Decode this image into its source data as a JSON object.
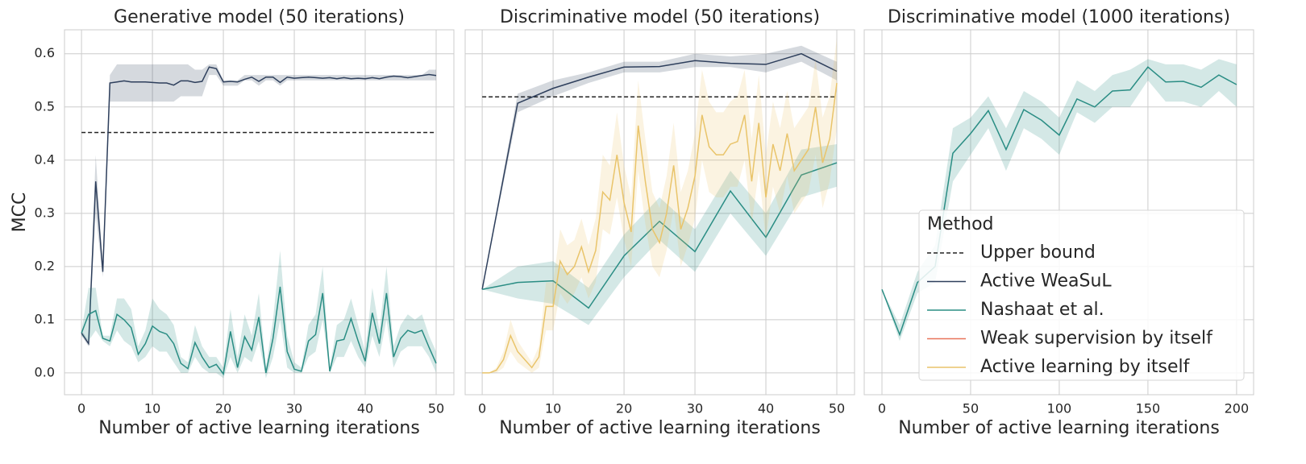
{
  "chart_data": [
    {
      "type": "line",
      "title": "Generative model (50 iterations)",
      "xlabel": "Number of active learning iterations",
      "ylabel": "MCC",
      "xlim": [
        -2.4,
        52.5
      ],
      "ylim": [
        -0.041,
        0.645
      ],
      "xticks": [
        0,
        10,
        20,
        30,
        40,
        50
      ],
      "yticks": [
        {
          "value": 0,
          "label": "0.0"
        },
        0.1,
        0.2,
        0.3,
        0.4,
        0.5,
        0.6
      ],
      "grid": true,
      "series": [
        {
          "name": "Upper bound",
          "color": "#222222",
          "linestyle": "dashed",
          "x": [
            0,
            50
          ],
          "values": [
            0.452,
            0.452
          ]
        },
        {
          "name": "Active WeaSuL",
          "color": "#2e3f5c",
          "linestyle": "solid",
          "x": [
            0,
            1,
            2,
            3,
            4,
            5,
            6,
            7,
            8,
            9,
            10,
            11,
            12,
            13,
            14,
            15,
            16,
            17,
            18,
            19,
            20,
            21,
            22,
            23,
            24,
            25,
            26,
            27,
            28,
            29,
            30,
            31,
            32,
            33,
            34,
            35,
            36,
            37,
            38,
            39,
            40,
            41,
            42,
            43,
            44,
            45,
            46,
            47,
            48,
            49,
            50
          ],
          "values": [
            0.075,
            0.055,
            0.36,
            0.19,
            0.545,
            0.547,
            0.549,
            0.547,
            0.547,
            0.547,
            0.546,
            0.545,
            0.545,
            0.541,
            0.549,
            0.549,
            0.546,
            0.548,
            0.575,
            0.572,
            0.547,
            0.548,
            0.547,
            0.552,
            0.556,
            0.548,
            0.556,
            0.556,
            0.546,
            0.556,
            0.554,
            0.555,
            0.556,
            0.555,
            0.554,
            0.555,
            0.553,
            0.555,
            0.553,
            0.554,
            0.553,
            0.555,
            0.553,
            0.556,
            0.558,
            0.557,
            0.555,
            0.557,
            0.559,
            0.561,
            0.559
          ],
          "lower": [
            0.07,
            0.05,
            0.3,
            0.18,
            0.51,
            0.51,
            0.51,
            0.51,
            0.51,
            0.51,
            0.51,
            0.51,
            0.51,
            0.51,
            0.52,
            0.52,
            0.52,
            0.52,
            0.56,
            0.56,
            0.54,
            0.54,
            0.54,
            0.55,
            0.55,
            0.54,
            0.55,
            0.55,
            0.54,
            0.55,
            0.55,
            0.55,
            0.55,
            0.55,
            0.55,
            0.55,
            0.55,
            0.55,
            0.55,
            0.55,
            0.55,
            0.55,
            0.55,
            0.55,
            0.55,
            0.55,
            0.55,
            0.55,
            0.55,
            0.55,
            0.55
          ],
          "upper": [
            0.08,
            0.06,
            0.41,
            0.2,
            0.56,
            0.58,
            0.58,
            0.58,
            0.58,
            0.58,
            0.58,
            0.58,
            0.58,
            0.58,
            0.58,
            0.58,
            0.57,
            0.57,
            0.58,
            0.58,
            0.55,
            0.55,
            0.55,
            0.56,
            0.56,
            0.56,
            0.56,
            0.56,
            0.56,
            0.56,
            0.56,
            0.56,
            0.56,
            0.56,
            0.56,
            0.56,
            0.56,
            0.56,
            0.56,
            0.56,
            0.56,
            0.56,
            0.56,
            0.56,
            0.56,
            0.56,
            0.56,
            0.56,
            0.56,
            0.57,
            0.57
          ]
        },
        {
          "name": "Nashaat et al.",
          "color": "#2a8d84",
          "linestyle": "solid",
          "x": [
            0,
            1,
            2,
            3,
            4,
            5,
            6,
            7,
            8,
            9,
            10,
            11,
            12,
            13,
            14,
            15,
            16,
            17,
            18,
            19,
            20,
            21,
            22,
            23,
            24,
            25,
            26,
            27,
            28,
            29,
            30,
            31,
            32,
            33,
            34,
            35,
            36,
            37,
            38,
            39,
            40,
            41,
            42,
            43,
            44,
            45,
            46,
            47,
            48,
            49,
            50
          ],
          "values": [
            0.075,
            0.11,
            0.117,
            0.065,
            0.06,
            0.11,
            0.1,
            0.085,
            0.035,
            0.055,
            0.088,
            0.078,
            0.073,
            0.055,
            0.018,
            0.008,
            0.057,
            0.03,
            0.01,
            0.016,
            -0.002,
            0.078,
            0.01,
            0.068,
            0.043,
            0.105,
            0.0,
            0.065,
            0.162,
            0.04,
            0.007,
            0.003,
            0.06,
            0.072,
            0.15,
            0.003,
            0.06,
            0.063,
            0.102,
            0.06,
            0.022,
            0.113,
            0.055,
            0.15,
            0.03,
            0.065,
            0.08,
            0.075,
            0.08,
            0.048,
            0.018
          ],
          "lower": [
            0.07,
            0.06,
            0.08,
            0.06,
            0.05,
            0.08,
            0.06,
            0.05,
            0.02,
            0.03,
            0.05,
            0.04,
            0.04,
            0.02,
            0.0,
            0.0,
            0.03,
            0.01,
            0.0,
            0.0,
            -0.01,
            0.03,
            0.0,
            0.03,
            0.02,
            0.06,
            -0.01,
            0.03,
            0.1,
            0.01,
            0.0,
            0.0,
            0.03,
            0.04,
            0.1,
            0.0,
            0.03,
            0.03,
            0.06,
            0.03,
            0.01,
            0.07,
            0.03,
            0.1,
            0.01,
            0.04,
            0.05,
            0.05,
            0.05,
            0.03,
            0.0
          ],
          "upper": [
            0.08,
            0.16,
            0.16,
            0.07,
            0.07,
            0.14,
            0.14,
            0.12,
            0.05,
            0.08,
            0.14,
            0.12,
            0.11,
            0.09,
            0.03,
            0.02,
            0.09,
            0.05,
            0.03,
            0.03,
            0.01,
            0.12,
            0.03,
            0.11,
            0.07,
            0.15,
            0.01,
            0.1,
            0.23,
            0.07,
            0.02,
            0.01,
            0.09,
            0.11,
            0.2,
            0.01,
            0.09,
            0.1,
            0.14,
            0.09,
            0.04,
            0.16,
            0.08,
            0.2,
            0.05,
            0.09,
            0.11,
            0.1,
            0.11,
            0.07,
            0.04
          ]
        }
      ]
    },
    {
      "type": "line",
      "title": "Discriminative model (50 iterations)",
      "xlabel": "Number of active learning iterations",
      "xlim": [
        -2.4,
        52.5
      ],
      "ylim": [
        -0.041,
        0.645
      ],
      "xticks": [
        0,
        10,
        20,
        30,
        40,
        50
      ],
      "sharey": true,
      "grid": true,
      "series": [
        {
          "name": "Upper bound",
          "color": "#222222",
          "linestyle": "dashed",
          "x": [
            0,
            50
          ],
          "values": [
            0.519,
            0.519
          ]
        },
        {
          "name": "Active WeaSuL",
          "color": "#2e3f5c",
          "linestyle": "solid",
          "x": [
            0,
            5,
            10,
            15,
            20,
            25,
            30,
            35,
            40,
            45,
            50
          ],
          "values": [
            0.157,
            0.507,
            0.535,
            0.556,
            0.575,
            0.576,
            0.587,
            0.582,
            0.58,
            0.6,
            0.567
          ],
          "lower": [
            0.157,
            0.49,
            0.52,
            0.545,
            0.565,
            0.565,
            0.575,
            0.575,
            0.565,
            0.585,
            0.55
          ],
          "upper": [
            0.157,
            0.525,
            0.55,
            0.565,
            0.585,
            0.585,
            0.6,
            0.595,
            0.6,
            0.615,
            0.585
          ]
        },
        {
          "name": "Nashaat et al.",
          "color": "#2a8d84",
          "linestyle": "solid",
          "x": [
            0,
            5,
            10,
            15,
            20,
            25,
            30,
            35,
            40,
            45,
            50
          ],
          "values": [
            0.157,
            0.17,
            0.173,
            0.122,
            0.22,
            0.285,
            0.228,
            0.342,
            0.255,
            0.372,
            0.395
          ],
          "lower": [
            0.157,
            0.14,
            0.13,
            0.09,
            0.18,
            0.25,
            0.19,
            0.3,
            0.22,
            0.33,
            0.35
          ],
          "upper": [
            0.157,
            0.2,
            0.21,
            0.16,
            0.26,
            0.33,
            0.27,
            0.38,
            0.3,
            0.42,
            0.43
          ]
        },
        {
          "name": "Active learning by itself",
          "color": "#e9c46a",
          "linestyle": "solid",
          "x": [
            0,
            1,
            2,
            3,
            4,
            5,
            6,
            7,
            8,
            9,
            10,
            11,
            12,
            13,
            14,
            15,
            16,
            17,
            18,
            19,
            20,
            21,
            22,
            23,
            24,
            25,
            26,
            27,
            28,
            29,
            30,
            31,
            32,
            33,
            34,
            35,
            36,
            37,
            38,
            39,
            40,
            41,
            42,
            43,
            44,
            45,
            46,
            47,
            48,
            49,
            50
          ],
          "values": [
            0.0,
            0.0,
            0.005,
            0.025,
            0.07,
            0.04,
            0.025,
            0.01,
            0.03,
            0.125,
            0.125,
            0.21,
            0.185,
            0.2,
            0.237,
            0.19,
            0.23,
            0.34,
            0.325,
            0.41,
            0.32,
            0.265,
            0.465,
            0.36,
            0.27,
            0.245,
            0.3,
            0.39,
            0.27,
            0.31,
            0.37,
            0.485,
            0.425,
            0.41,
            0.41,
            0.43,
            0.435,
            0.485,
            0.36,
            0.47,
            0.33,
            0.43,
            0.38,
            0.45,
            0.38,
            0.4,
            0.42,
            0.5,
            0.395,
            0.44,
            0.545
          ],
          "lower": [
            0,
            0,
            0,
            0.01,
            0.04,
            0.02,
            0.01,
            0,
            0.01,
            0.08,
            0.08,
            0.15,
            0.13,
            0.15,
            0.18,
            0.14,
            0.17,
            0.27,
            0.26,
            0.33,
            0.25,
            0.2,
            0.38,
            0.28,
            0.2,
            0.18,
            0.23,
            0.31,
            0.2,
            0.24,
            0.29,
            0.4,
            0.34,
            0.33,
            0.33,
            0.35,
            0.35,
            0.4,
            0.28,
            0.38,
            0.25,
            0.35,
            0.3,
            0.37,
            0.3,
            0.32,
            0.34,
            0.41,
            0.31,
            0.36,
            0.46
          ],
          "upper": [
            0,
            0,
            0.01,
            0.04,
            0.1,
            0.06,
            0.04,
            0.02,
            0.05,
            0.17,
            0.17,
            0.27,
            0.24,
            0.25,
            0.29,
            0.24,
            0.29,
            0.41,
            0.39,
            0.49,
            0.39,
            0.33,
            0.55,
            0.44,
            0.34,
            0.31,
            0.37,
            0.47,
            0.34,
            0.38,
            0.45,
            0.57,
            0.51,
            0.49,
            0.49,
            0.51,
            0.52,
            0.57,
            0.44,
            0.56,
            0.41,
            0.51,
            0.46,
            0.53,
            0.46,
            0.48,
            0.5,
            0.59,
            0.48,
            0.52,
            0.63
          ]
        }
      ]
    },
    {
      "type": "line",
      "title": "Discriminative model (1000 iterations)",
      "xlabel": "Number of active learning iterations",
      "xlim": [
        -10,
        209.6
      ],
      "ylim": [
        -0.041,
        0.645
      ],
      "xticks": [
        0,
        50,
        100,
        150,
        200
      ],
      "sharey": true,
      "grid": true,
      "series": [
        {
          "name": "Nashaat et al.",
          "color": "#2a8d84",
          "linestyle": "solid",
          "x": [
            0,
            10,
            20,
            30,
            40,
            50,
            60,
            70,
            80,
            90,
            100,
            110,
            120,
            130,
            140,
            150,
            160,
            170,
            180,
            190,
            200
          ],
          "values": [
            0.157,
            0.072,
            0.17,
            0.2,
            0.413,
            0.45,
            0.493,
            0.42,
            0.495,
            0.475,
            0.447,
            0.515,
            0.5,
            0.53,
            0.532,
            0.575,
            0.547,
            0.548,
            0.537,
            0.56,
            0.542
          ],
          "lower": [
            0.157,
            0.06,
            0.15,
            0.17,
            0.36,
            0.41,
            0.46,
            0.38,
            0.46,
            0.44,
            0.41,
            0.49,
            0.47,
            0.5,
            0.5,
            0.55,
            0.51,
            0.51,
            0.5,
            0.53,
            0.5
          ],
          "upper": [
            0.157,
            0.09,
            0.19,
            0.24,
            0.46,
            0.48,
            0.52,
            0.46,
            0.53,
            0.51,
            0.48,
            0.55,
            0.53,
            0.56,
            0.57,
            0.59,
            0.58,
            0.58,
            0.57,
            0.59,
            0.58
          ]
        }
      ],
      "legend": {
        "title": "Method",
        "position": "lower right",
        "entries": [
          {
            "name": "Upper bound",
            "color": "#222222",
            "linestyle": "dashed"
          },
          {
            "name": "Active WeaSuL",
            "color": "#2e3f5c",
            "linestyle": "solid"
          },
          {
            "name": "Nashaat et al.",
            "color": "#2a8d84",
            "linestyle": "solid"
          },
          {
            "name": "Weak supervision by itself",
            "color": "#e8745a",
            "linestyle": "solid"
          },
          {
            "name": "Active learning by itself",
            "color": "#e9c46a",
            "linestyle": "solid"
          }
        ]
      }
    }
  ]
}
